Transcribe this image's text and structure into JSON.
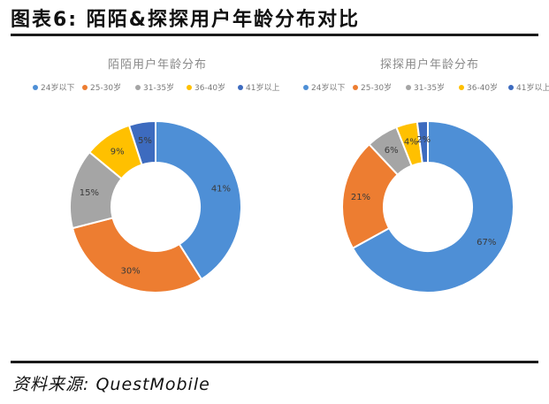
{
  "figure": {
    "title": "图表6:  陌陌&探探用户年龄分布对比",
    "source": "资料来源: QuestMobile"
  },
  "chart_data": [
    {
      "type": "pie",
      "donut": true,
      "title": "陌陌用户年龄分布",
      "legend_position": "top",
      "categories": [
        "24岁以下",
        "25-30岁",
        "31-35岁",
        "36-40岁",
        "41岁以上"
      ],
      "values": [
        41,
        30,
        15,
        9,
        5
      ],
      "labels": [
        "41%",
        "30%",
        "15%",
        "9%",
        "5%"
      ],
      "colors": [
        "#4e8fd6",
        "#ed7d31",
        "#a5a5a5",
        "#ffc000",
        "#3d6bbf"
      ]
    },
    {
      "type": "pie",
      "donut": true,
      "title": "探探用户年龄分布",
      "legend_position": "top",
      "categories": [
        "24岁以下",
        "25-30岁",
        "31-35岁",
        "36-40岁",
        "41岁以上"
      ],
      "values": [
        67,
        21,
        6,
        4,
        2
      ],
      "labels": [
        "67%",
        "21%",
        "6%",
        "4%",
        "2%"
      ],
      "colors": [
        "#4e8fd6",
        "#ed7d31",
        "#a5a5a5",
        "#ffc000",
        "#3d6bbf"
      ]
    }
  ]
}
